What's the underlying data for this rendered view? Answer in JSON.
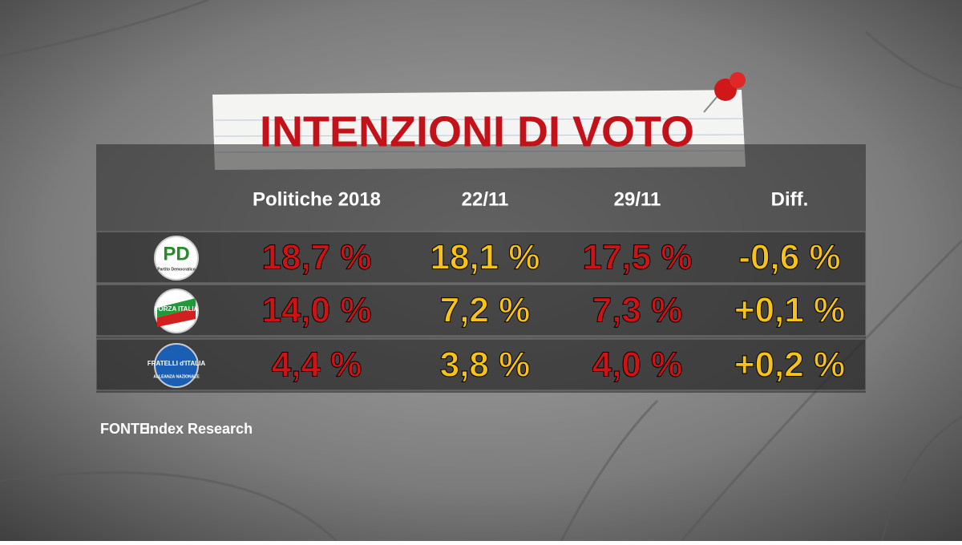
{
  "header": {
    "title": "INTENZIONI DI VOTO"
  },
  "table": {
    "columns": [
      "Politiche 2018",
      "22/11",
      "29/11",
      "Diff."
    ],
    "rows": [
      {
        "logo": {
          "mark": "PD",
          "caption": "Partito Democratico"
        },
        "cells": [
          "18,7 %",
          "18,1 %",
          "17,5 %",
          "-0,6 %"
        ]
      },
      {
        "logo": {
          "mark": "FORZA ITALIA"
        },
        "cells": [
          "14,0 %",
          "7,2 %",
          "7,3 %",
          "+0,1 %"
        ]
      },
      {
        "logo": {
          "mark": "FRATELLI d'ITALIA",
          "caption": "ALLEANZA NAZIONALE"
        },
        "cells": [
          "4,4 %",
          "3,8 %",
          "4,0 %",
          "+0,2 %"
        ]
      }
    ]
  },
  "footer": {
    "label": "FONTE:",
    "source": "Index Research"
  }
}
